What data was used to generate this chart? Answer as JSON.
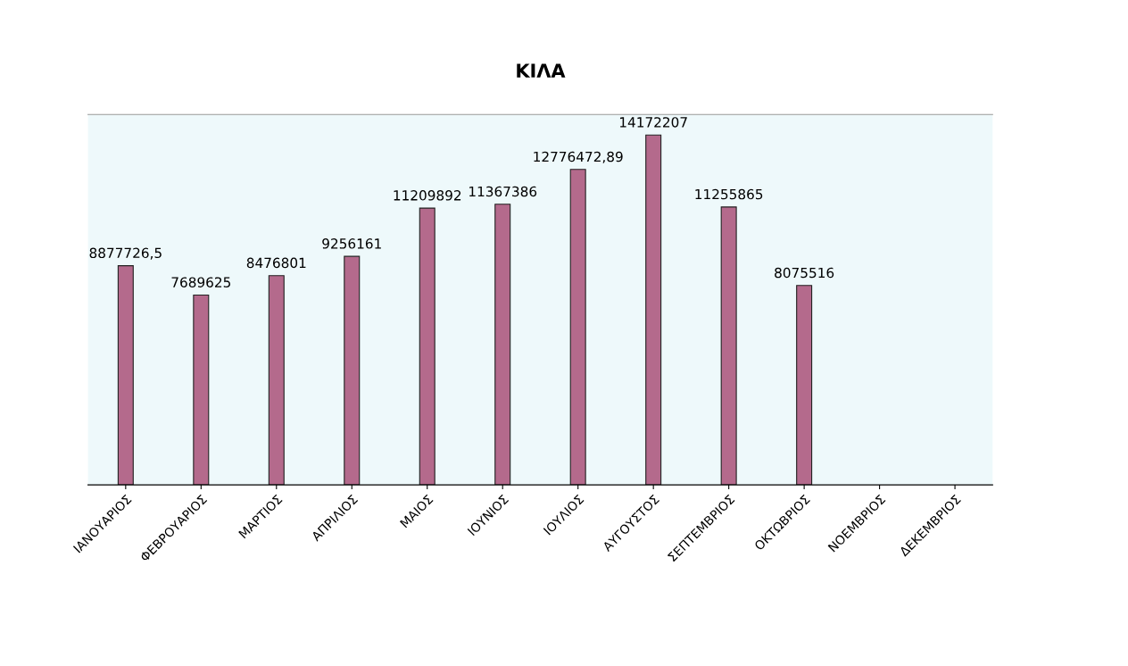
{
  "chart_data": {
    "type": "bar",
    "title": "ΚΙΛΑ",
    "categories": [
      "ΙΑΝΟΥΑΡΙΟΣ",
      "ΦΕΒΡΟΥΑΡΙΟΣ",
      "ΜΑΡΤΙΟΣ",
      "ΑΠΡΙΛΙΟΣ",
      "ΜΑΙΟΣ",
      "ΙΟΥΝΙΟΣ",
      "ΙΟΥΛΙΟΣ",
      "ΑΥΓΟΥΣΤΟΣ",
      "ΣΕΠΤΕΜΒΡΙΟΣ",
      "ΟΚΤΩΒΡΙΟΣ",
      "ΝΟΕΜΒΡΙΟΣ",
      "ΔΕΚΕΜΒΡΙΟΣ"
    ],
    "values": [
      8877726.5,
      7689625,
      8476801,
      9256161,
      11209892,
      11367386,
      12776472.89,
      14172207,
      11255865,
      8075516,
      null,
      null
    ],
    "value_labels": [
      "8877726,5",
      "7689625",
      "8476801",
      "9256161",
      "11209892",
      "11367386",
      "12776472,89",
      "14172207",
      "11255865",
      "8075516",
      null,
      null
    ],
    "color": "#b46a8c",
    "ylim": [
      0,
      15000000
    ],
    "grid": false,
    "legend": false
  }
}
